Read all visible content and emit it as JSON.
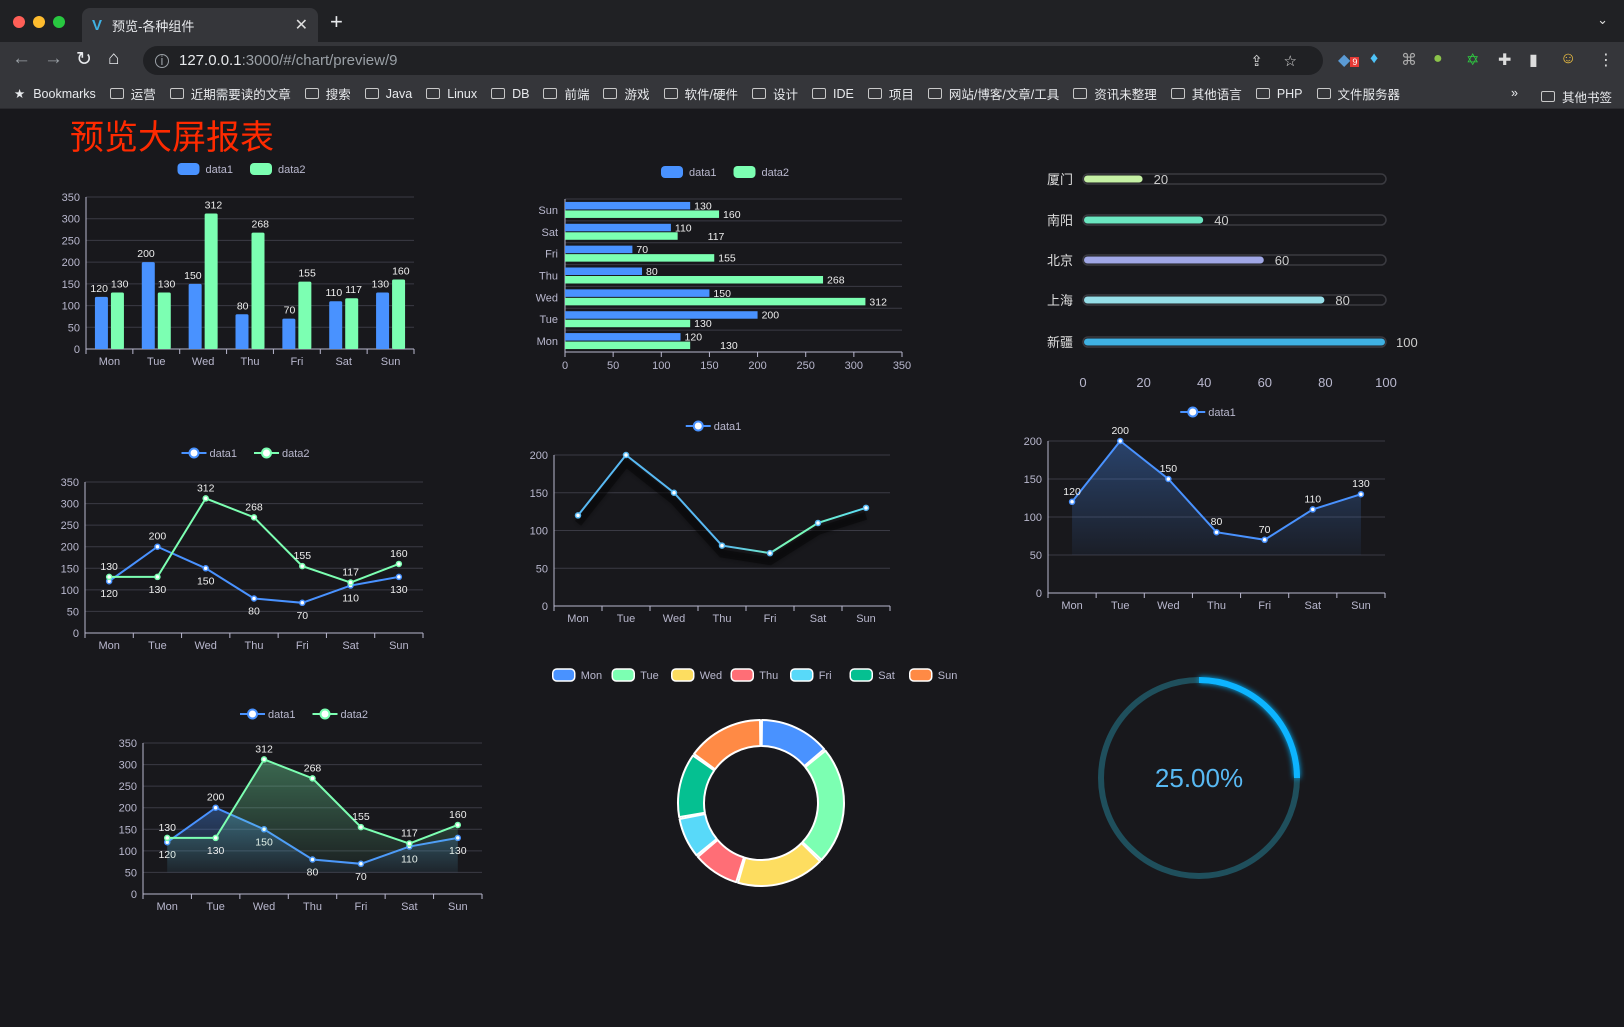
{
  "browser": {
    "tab_title": "预览-各种组件",
    "url_host": "127.0.0.1",
    "url_path": ":3000/#/chart/preview/9",
    "extension_badge": "9",
    "bookmarks": [
      "Bookmarks",
      "运营",
      "近期需要读的文章",
      "搜索",
      "Java",
      "Linux",
      "DB",
      "前端",
      "游戏",
      "软件/硬件",
      "设计",
      "IDE",
      "项目",
      "网站/博客/文章/工具",
      "资讯未整理",
      "其他语言",
      "PHP",
      "文件服务器"
    ],
    "more": "»",
    "other_bookmarks": "其他书签"
  },
  "page": {
    "title": "预览大屏报表"
  },
  "colors": {
    "data1": "#4992ff",
    "data2": "#7cffb2",
    "background": "#18181c",
    "title": "#ff2a00"
  },
  "chart_data": [
    {
      "id": "bar1",
      "type": "bar",
      "orientation": "vertical",
      "categories": [
        "Mon",
        "Tue",
        "Wed",
        "Thu",
        "Fri",
        "Sat",
        "Sun"
      ],
      "series": [
        {
          "name": "data1",
          "values": [
            120,
            200,
            150,
            80,
            70,
            110,
            130
          ]
        },
        {
          "name": "data2",
          "values": [
            130,
            130,
            312,
            268,
            155,
            117,
            160
          ]
        }
      ],
      "ylim": [
        0,
        350
      ],
      "ticks": [
        0,
        50,
        100,
        150,
        200,
        250,
        300,
        350
      ],
      "legend": "top-center",
      "grid": true
    },
    {
      "id": "hbar",
      "type": "bar",
      "orientation": "horizontal",
      "categories": [
        "Mon",
        "Tue",
        "Wed",
        "Thu",
        "Fri",
        "Sat",
        "Sun"
      ],
      "series": [
        {
          "name": "data1",
          "values": [
            120,
            200,
            150,
            80,
            70,
            110,
            130
          ]
        },
        {
          "name": "data2",
          "values": [
            130,
            130,
            312,
            268,
            155,
            117,
            160
          ]
        }
      ],
      "xlim": [
        0,
        350
      ],
      "ticks": [
        0,
        50,
        100,
        150,
        200,
        250,
        300,
        350
      ],
      "legend": "top-center",
      "grid": true
    },
    {
      "id": "progress",
      "type": "bar",
      "orientation": "horizontal-progress",
      "categories": [
        "厦门",
        "南阳",
        "北京",
        "上海",
        "新疆"
      ],
      "values": [
        20,
        40,
        60,
        80,
        100
      ],
      "colors": [
        "#c5f0a4",
        "#6be6c1",
        "#a0a7e6",
        "#96dee8",
        "#3fb1e3"
      ],
      "xlim": [
        0,
        100
      ],
      "ticks": [
        0,
        20,
        40,
        60,
        80,
        100
      ]
    },
    {
      "id": "line1",
      "type": "line",
      "categories": [
        "Mon",
        "Tue",
        "Wed",
        "Thu",
        "Fri",
        "Sat",
        "Sun"
      ],
      "series": [
        {
          "name": "data1",
          "values": [
            120,
            200,
            150,
            80,
            70,
            110,
            130
          ]
        },
        {
          "name": "data2",
          "values": [
            130,
            130,
            312,
            268,
            155,
            117,
            160
          ]
        }
      ],
      "ylim": [
        0,
        350
      ],
      "ticks": [
        0,
        50,
        100,
        150,
        200,
        250,
        300,
        350
      ],
      "labels": true,
      "area": false,
      "legend": "top-center"
    },
    {
      "id": "line2",
      "type": "line",
      "categories": [
        "Mon",
        "Tue",
        "Wed",
        "Thu",
        "Fri",
        "Sat",
        "Sun"
      ],
      "series": [
        {
          "name": "data1",
          "values": [
            120,
            200,
            150,
            80,
            70,
            110,
            130
          ]
        }
      ],
      "ylim": [
        0,
        200
      ],
      "ticks": [
        0,
        50,
        100,
        150,
        200
      ],
      "labels": false,
      "area": false,
      "gradient_line": true,
      "legend": "top-center"
    },
    {
      "id": "line3",
      "type": "area",
      "categories": [
        "Mon",
        "Tue",
        "Wed",
        "Thu",
        "Fri",
        "Sat",
        "Sun"
      ],
      "series": [
        {
          "name": "data1",
          "values": [
            120,
            200,
            150,
            80,
            70,
            110,
            130
          ]
        }
      ],
      "ylim": [
        0,
        200
      ],
      "ticks": [
        0,
        50,
        100,
        150,
        200
      ],
      "labels": true,
      "area": true,
      "legend": "top-center"
    },
    {
      "id": "line4",
      "type": "area",
      "categories": [
        "Mon",
        "Tue",
        "Wed",
        "Thu",
        "Fri",
        "Sat",
        "Sun"
      ],
      "series": [
        {
          "name": "data1",
          "values": [
            120,
            200,
            150,
            80,
            70,
            110,
            130
          ]
        },
        {
          "name": "data2",
          "values": [
            130,
            130,
            312,
            268,
            155,
            117,
            160
          ]
        }
      ],
      "ylim": [
        0,
        350
      ],
      "ticks": [
        0,
        50,
        100,
        150,
        200,
        250,
        300,
        350
      ],
      "labels": true,
      "area": true,
      "legend": "top-center"
    },
    {
      "id": "pie",
      "type": "pie",
      "donut": true,
      "categories": [
        "Mon",
        "Tue",
        "Wed",
        "Thu",
        "Fri",
        "Sat",
        "Sun"
      ],
      "values": [
        120,
        200,
        150,
        80,
        70,
        110,
        130
      ],
      "colors": [
        "#4992ff",
        "#7cffb2",
        "#fddd60",
        "#ff6e76",
        "#58d9f9",
        "#05c091",
        "#ff8a45"
      ],
      "legend": "top-center"
    },
    {
      "id": "gauge",
      "type": "gauge",
      "value": 25,
      "label": "25.00%",
      "color": "#0bb4ff",
      "track_color": "#1f4f5c"
    }
  ]
}
